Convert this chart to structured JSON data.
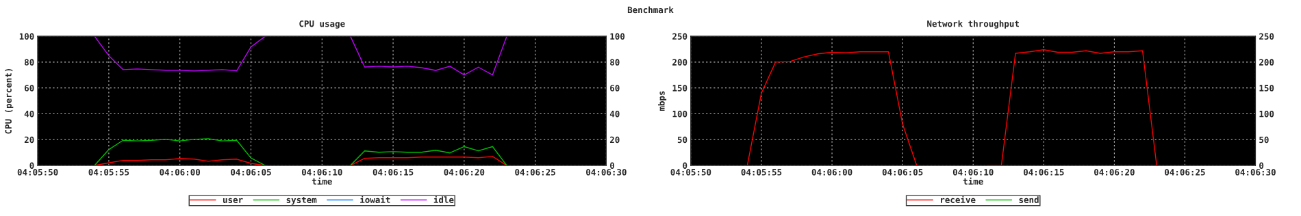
{
  "chart_data": [
    {
      "type": "line",
      "title": "CPU usage",
      "annotations": [
        "Benchmark"
      ],
      "xlabel": "time",
      "ylabel": "CPU (percent)",
      "x": [
        4.098333,
        4.098611,
        4.098889,
        4.099167,
        4.099444,
        4.099722,
        4.1,
        4.100278,
        4.100556,
        4.100833,
        4.101111,
        4.101389,
        4.101667,
        4.101944,
        4.102222,
        4.1025,
        4.102778,
        4.103056,
        4.103333,
        4.103611,
        4.103889,
        4.104167,
        4.104444,
        4.104722,
        4.105,
        4.105278,
        4.105556,
        4.105833,
        4.106111,
        4.106389
      ],
      "series": [
        {
          "name": "user",
          "color": "#ff0000",
          "values": [
            0,
            2,
            3.9,
            3.9,
            4.4,
            4.4,
            5.3,
            4.9,
            3.3,
            4.4,
            4.9,
            1.6,
            0,
            null,
            null,
            null,
            null,
            null,
            0,
            5.5,
            6,
            6,
            6,
            6.5,
            6.5,
            6.5,
            6.5,
            6,
            7,
            0
          ]
        },
        {
          "name": "system",
          "color": "#00c000",
          "values": [
            0,
            12.3,
            19.5,
            19,
            19.5,
            20.2,
            19,
            20.2,
            20.7,
            19,
            19.5,
            5.8,
            0,
            null,
            null,
            null,
            null,
            null,
            0,
            11.3,
            10.2,
            10.7,
            10.2,
            10.2,
            11.8,
            9.7,
            14.6,
            11.3,
            14.6,
            0
          ]
        },
        {
          "name": "iowait",
          "color": "#0080ff",
          "values": [
            null,
            null,
            null,
            null,
            null,
            null,
            null,
            null,
            null,
            null,
            null,
            null,
            null,
            null,
            null,
            null,
            null,
            null,
            null,
            null,
            null,
            null,
            null,
            null,
            null,
            null,
            null,
            null,
            null,
            null
          ]
        },
        {
          "name": "idle",
          "color": "#c000ff",
          "values": [
            100,
            85,
            74.2,
            74.7,
            74.2,
            73.7,
            73.7,
            73.2,
            73.7,
            74.2,
            73.3,
            91.8,
            100,
            null,
            null,
            null,
            null,
            null,
            100,
            76.2,
            76.8,
            76.2,
            76.8,
            75.7,
            73.6,
            76.8,
            70.1,
            76.1,
            70.1,
            100
          ]
        }
      ],
      "xlim": [
        4.097222,
        4.108333
      ],
      "xticks": [
        {
          "value": 4.097222,
          "label": "04:05:50"
        },
        {
          "value": 4.098611,
          "label": "04:05:55"
        },
        {
          "value": 4.1,
          "label": "04:06:00"
        },
        {
          "value": 4.101389,
          "label": "04:06:05"
        },
        {
          "value": 4.102778,
          "label": "04:06:10"
        },
        {
          "value": 4.104167,
          "label": "04:06:15"
        },
        {
          "value": 4.105556,
          "label": "04:06:20"
        },
        {
          "value": 4.106944,
          "label": "04:06:25"
        },
        {
          "value": 4.108333,
          "label": "04:06:30"
        }
      ],
      "ylim": [
        0,
        100
      ],
      "yticks": [
        0,
        20,
        40,
        60,
        80,
        100
      ],
      "y2lim": [
        0,
        100
      ],
      "y2ticks": [
        0,
        20,
        40,
        60,
        80,
        100
      ],
      "grid": true,
      "legend": "bottom",
      "marker": "none",
      "line_style": "solid"
    },
    {
      "type": "line",
      "title": "Network throughput",
      "xlabel": "time",
      "ylabel": "mbps",
      "x": [
        4.098333,
        4.098611,
        4.098889,
        4.099167,
        4.099444,
        4.099722,
        4.1,
        4.100278,
        4.100556,
        4.100833,
        4.101111,
        4.101389,
        4.101667,
        4.101944,
        4.102222,
        4.1025,
        4.102778,
        4.103056,
        4.103333,
        4.103611,
        4.103889,
        4.104167,
        4.104444,
        4.104722,
        4.105,
        4.105278,
        4.105556,
        4.105833,
        4.106111,
        4.106389
      ],
      "series": [
        {
          "name": "receive",
          "color": "#ff0000",
          "values": [
            0,
            140,
            200,
            201,
            210,
            216,
            219,
            218,
            220,
            220,
            220,
            80,
            0,
            null,
            null,
            null,
            null,
            0,
            0,
            217,
            220,
            224,
            219,
            219,
            222,
            217,
            220,
            220,
            222,
            0
          ]
        },
        {
          "name": "send",
          "color": "#00c000",
          "values": [
            null,
            null,
            null,
            null,
            null,
            null,
            null,
            null,
            null,
            null,
            null,
            null,
            null,
            null,
            null,
            null,
            null,
            null,
            null,
            null,
            null,
            null,
            null,
            null,
            null,
            null,
            null,
            null,
            null,
            null
          ]
        }
      ],
      "xlim": [
        4.097222,
        4.108333
      ],
      "xticks": [
        {
          "value": 4.097222,
          "label": "04:05:50"
        },
        {
          "value": 4.098611,
          "label": "04:05:55"
        },
        {
          "value": 4.1,
          "label": "04:06:00"
        },
        {
          "value": 4.101389,
          "label": "04:06:05"
        },
        {
          "value": 4.102778,
          "label": "04:06:10"
        },
        {
          "value": 4.104167,
          "label": "04:06:15"
        },
        {
          "value": 4.105556,
          "label": "04:06:20"
        },
        {
          "value": 4.106944,
          "label": "04:06:25"
        },
        {
          "value": 4.108333,
          "label": "04:06:30"
        }
      ],
      "ylim": [
        0,
        250
      ],
      "yticks": [
        0,
        50,
        100,
        150,
        200,
        250
      ],
      "y2lim": [
        0,
        250
      ],
      "y2ticks": [
        0,
        50,
        100,
        150,
        200,
        250
      ],
      "grid": true,
      "legend": "bottom",
      "marker": "none",
      "line_style": "solid"
    }
  ]
}
